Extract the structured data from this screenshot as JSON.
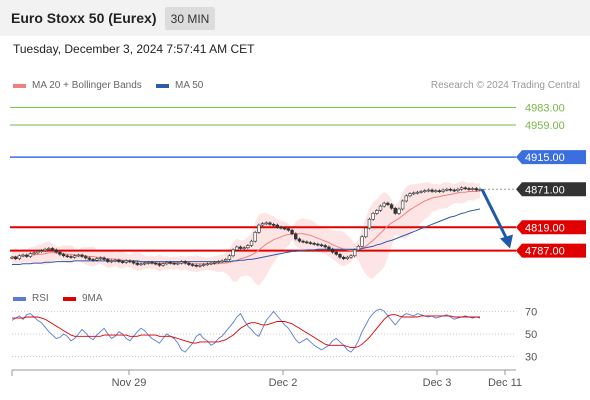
{
  "header": {
    "title": "Euro Stoxx 50 (Eurex)",
    "timeframe": "30 MIN",
    "datetime": "Tuesday, December 3, 2024 7:57:41 AM CET"
  },
  "legend": {
    "ma20": "MA 20 + Bollinger Bands",
    "ma50": "MA 50",
    "credit": "Research © 2024 Trading Central",
    "rsi": "RSI",
    "rsi_ma": "9MA"
  },
  "colors": {
    "ma20": "#f08080",
    "ma50": "#2f5aa8",
    "bands": "#fddcdc",
    "resistance": "#7ab648",
    "pivot": "#3b6fe0",
    "support": "#e00000",
    "current": "#333333",
    "rsi": "#5b7bd5",
    "rsi_ma": "#e00000",
    "arrow": "#1e5aa8",
    "candle_up": "#ffffff",
    "candle_down": "#333333"
  },
  "chart_data": {
    "type": "candlestick",
    "title": "Euro Stoxx 50 (Eurex)",
    "timeframe": "30 MIN",
    "x_labels": [
      "Nov 29",
      "Dec 2",
      "Dec 3",
      "Dec 11"
    ],
    "y_range": [
      4740,
      5000
    ],
    "levels": [
      {
        "value": 4983.0,
        "label": "4983.00",
        "kind": "resistance"
      },
      {
        "value": 4959.0,
        "label": "4959.00",
        "kind": "resistance"
      },
      {
        "value": 4915.0,
        "label": "4915.00",
        "kind": "pivot"
      },
      {
        "value": 4871.0,
        "label": "4871.00",
        "kind": "current"
      },
      {
        "value": 4819.0,
        "label": "4819.00",
        "kind": "support"
      },
      {
        "value": 4787.0,
        "label": "4787.00",
        "kind": "support"
      }
    ],
    "close": [
      4778,
      4776,
      4780,
      4781,
      4779,
      4783,
      4784,
      4786,
      4787,
      4789,
      4790,
      4788,
      4785,
      4782,
      4780,
      4779,
      4778,
      4780,
      4781,
      4779,
      4777,
      4775,
      4774,
      4776,
      4777,
      4775,
      4772,
      4773,
      4774,
      4772,
      4771,
      4773,
      4772,
      4770,
      4768,
      4769,
      4770,
      4771,
      4770,
      4769,
      4767,
      4769,
      4771,
      4770,
      4769,
      4770,
      4772,
      4770,
      4768,
      4767,
      4766,
      4767,
      4768,
      4769,
      4770,
      4771,
      4772,
      4773,
      4775,
      4780,
      4788,
      4792,
      4790,
      4791,
      4794,
      4800,
      4812,
      4822,
      4824,
      4825,
      4823,
      4822,
      4819,
      4818,
      4817,
      4815,
      4810,
      4803,
      4800,
      4799,
      4798,
      4797,
      4796,
      4795,
      4794,
      4792,
      4789,
      4785,
      4782,
      4778,
      4776,
      4778,
      4780,
      4788,
      4793,
      4806,
      4818,
      4830,
      4838,
      4842,
      4848,
      4852,
      4850,
      4845,
      4838,
      4844,
      4855,
      4862,
      4865,
      4866,
      4867,
      4868,
      4869,
      4870,
      4868,
      4869,
      4868,
      4870,
      4871,
      4870,
      4869,
      4871,
      4873,
      4872,
      4871,
      4872,
      4870,
      4871
    ],
    "ma20": [
      4779,
      4779,
      4779,
      4780,
      4780,
      4781,
      4781,
      4782,
      4782,
      4783,
      4784,
      4784,
      4784,
      4783,
      4783,
      4782,
      4782,
      4781,
      4781,
      4781,
      4780,
      4779,
      4779,
      4778,
      4778,
      4777,
      4776,
      4776,
      4775,
      4775,
      4774,
      4774,
      4773,
      4773,
      4772,
      4772,
      4771,
      4771,
      4771,
      4770,
      4770,
      4770,
      4770,
      4770,
      4770,
      4770,
      4770,
      4770,
      4770,
      4769,
      4769,
      4769,
      4769,
      4769,
      4769,
      4769,
      4769,
      4770,
      4770,
      4771,
      4772,
      4774,
      4776,
      4777,
      4779,
      4781,
      4784,
      4788,
      4792,
      4796,
      4799,
      4802,
      4804,
      4806,
      4808,
      4809,
      4810,
      4810,
      4810,
      4810,
      4809,
      4808,
      4806,
      4804,
      4802,
      4800,
      4798,
      4795,
      4793,
      4791,
      4789,
      4788,
      4787,
      4787,
      4788,
      4790,
      4793,
      4797,
      4801,
      4806,
      4811,
      4816,
      4821,
      4825,
      4828,
      4831,
      4835,
      4839,
      4843,
      4846,
      4849,
      4852,
      4855,
      4857,
      4859,
      4860,
      4861,
      4862,
      4863,
      4864,
      4865,
      4866,
      4867,
      4867,
      4868,
      4868,
      4868,
      4869
    ],
    "ma50": [
      4768,
      4768,
      4768,
      4769,
      4769,
      4769,
      4770,
      4770,
      4770,
      4771,
      4771,
      4771,
      4772,
      4772,
      4772,
      4772,
      4772,
      4773,
      4773,
      4773,
      4773,
      4773,
      4773,
      4773,
      4773,
      4773,
      4773,
      4773,
      4773,
      4773,
      4773,
      4773,
      4773,
      4773,
      4773,
      4772,
      4772,
      4772,
      4772,
      4772,
      4772,
      4772,
      4772,
      4772,
      4772,
      4772,
      4772,
      4772,
      4772,
      4772,
      4772,
      4772,
      4772,
      4772,
      4772,
      4772,
      4772,
      4772,
      4772,
      4772,
      4773,
      4773,
      4774,
      4774,
      4775,
      4775,
      4776,
      4777,
      4778,
      4779,
      4780,
      4781,
      4782,
      4783,
      4784,
      4785,
      4786,
      4786,
      4787,
      4787,
      4788,
      4788,
      4788,
      4789,
      4789,
      4789,
      4789,
      4789,
      4789,
      4789,
      4789,
      4789,
      4789,
      4789,
      4789,
      4790,
      4791,
      4792,
      4793,
      4795,
      4796,
      4798,
      4800,
      4801,
      4803,
      4805,
      4807,
      4809,
      4811,
      4813,
      4815,
      4817,
      4819,
      4821,
      4823,
      4825,
      4827,
      4829,
      4831,
      4833,
      4834,
      4836,
      4838,
      4839,
      4841,
      4842,
      4843,
      4844
    ],
    "rsi_y_ticks": [
      70,
      50,
      30
    ],
    "rsi_range": [
      20,
      80
    ],
    "rsi": [
      62,
      64,
      66,
      63,
      67,
      68,
      65,
      62,
      60,
      56,
      52,
      49,
      46,
      47,
      50,
      48,
      44,
      46,
      50,
      54,
      51,
      47,
      45,
      49,
      52,
      55,
      50,
      46,
      48,
      52,
      50,
      46,
      44,
      48,
      52,
      55,
      53,
      49,
      46,
      44,
      42,
      46,
      50,
      48,
      46,
      42,
      36,
      34,
      38,
      42,
      48,
      50,
      46,
      44,
      40,
      42,
      46,
      48,
      52,
      56,
      60,
      65,
      68,
      62,
      57,
      54,
      50,
      48,
      55,
      62,
      66,
      70,
      66,
      62,
      58,
      55,
      50,
      45,
      42,
      44,
      46,
      43,
      40,
      38,
      36,
      38,
      40,
      44,
      46,
      43,
      40,
      36,
      34,
      38,
      44,
      52,
      58,
      64,
      68,
      71,
      72,
      70,
      66,
      62,
      58,
      62,
      66,
      68,
      67,
      66,
      68,
      67,
      66,
      65,
      66,
      64,
      65,
      66,
      67,
      65,
      63,
      64,
      65,
      66,
      65,
      64,
      65,
      64
    ],
    "rsi_ma": [
      64,
      64,
      64,
      64,
      65,
      65,
      65,
      65,
      64,
      63,
      61,
      59,
      57,
      55,
      53,
      51,
      49,
      48,
      48,
      48,
      48,
      48,
      48,
      48,
      48,
      49,
      49,
      49,
      49,
      49,
      49,
      49,
      48,
      48,
      48,
      49,
      49,
      49,
      49,
      49,
      48,
      48,
      48,
      48,
      47,
      46,
      45,
      44,
      43,
      42,
      42,
      43,
      43,
      43,
      43,
      43,
      43,
      44,
      45,
      47,
      49,
      52,
      55,
      57,
      59,
      60,
      60,
      59,
      58,
      58,
      59,
      60,
      61,
      61,
      61,
      60,
      59,
      57,
      55,
      53,
      51,
      49,
      47,
      45,
      43,
      41,
      40,
      40,
      40,
      40,
      40,
      39,
      38,
      38,
      39,
      41,
      44,
      47,
      51,
      55,
      59,
      63,
      66,
      67,
      67,
      66,
      65,
      65,
      65,
      65,
      65,
      66,
      66,
      66,
      66,
      66,
      66,
      66,
      66,
      66,
      65,
      65,
      65,
      65,
      65,
      65,
      65,
      65
    ]
  }
}
